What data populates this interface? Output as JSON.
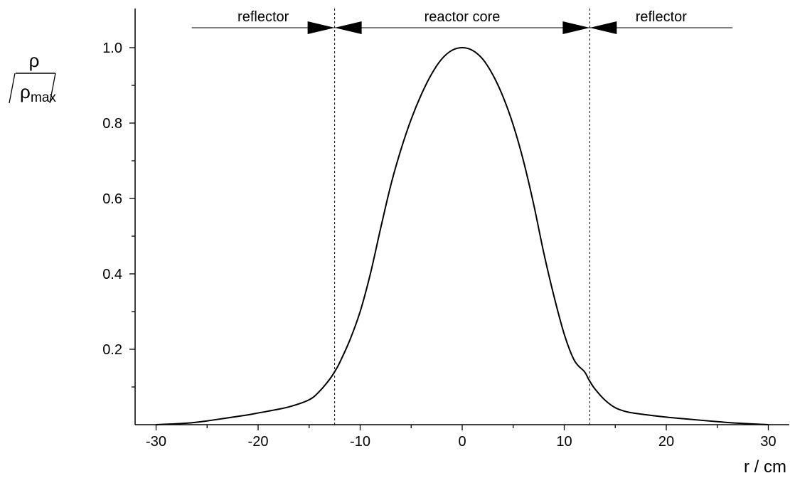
{
  "chart_data": {
    "type": "line",
    "xlabel": "r / cm",
    "ylabel": {
      "numerator": "ρ",
      "denominator_symbol": "ρ",
      "denominator_subscript": "max"
    },
    "xlim": [
      -32,
      32
    ],
    "ylim": [
      0,
      1.1
    ],
    "x_ticks": [
      -30,
      -20,
      -10,
      0,
      10,
      20,
      30
    ],
    "x_tick_labels": [
      "-30",
      "-20",
      "-10",
      "0",
      "10",
      "20",
      "30"
    ],
    "y_ticks": [
      0.2,
      0.4,
      0.6,
      0.8,
      1.0
    ],
    "y_tick_labels": [
      "0.2",
      "0.4",
      "0.6",
      "0.8",
      "1.0"
    ],
    "grid": false,
    "series": [
      {
        "color": "#000000",
        "x": [
          -30,
          -27,
          -25,
          -23,
          -21,
          -20,
          -19,
          -17,
          -15,
          -14,
          -13,
          -12.4,
          -12,
          -11,
          -10,
          -9,
          -8,
          -7,
          -6,
          -5,
          -4,
          -3,
          -2,
          -1,
          0,
          1,
          2,
          3,
          4,
          5,
          6,
          7,
          8,
          9,
          10,
          11,
          12,
          12.4,
          13,
          14,
          15,
          16,
          17,
          20,
          22,
          25,
          27,
          30
        ],
        "y": [
          0.0,
          0.004,
          0.01,
          0.018,
          0.026,
          0.031,
          0.036,
          0.047,
          0.066,
          0.088,
          0.12,
          0.145,
          0.165,
          0.225,
          0.3,
          0.4,
          0.52,
          0.635,
          0.73,
          0.81,
          0.876,
          0.93,
          0.97,
          0.993,
          1.0,
          0.993,
          0.97,
          0.928,
          0.87,
          0.795,
          0.7,
          0.585,
          0.455,
          0.34,
          0.24,
          0.17,
          0.14,
          0.12,
          0.095,
          0.065,
          0.045,
          0.035,
          0.03,
          0.02,
          0.015,
          0.008,
          0.004,
          0.0
        ]
      }
    ],
    "boundaries": [
      -12.5,
      12.5
    ],
    "regions": [
      {
        "label": "reflector",
        "from": -26.5,
        "to": -12.5
      },
      {
        "label": "reactor core",
        "from": -12.5,
        "to": 12.5
      },
      {
        "label": "reflector",
        "from": 12.5,
        "to": 26.5
      }
    ]
  }
}
